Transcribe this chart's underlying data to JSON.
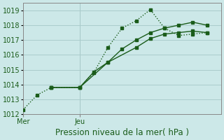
{
  "title": "Pression niveau de la mer( hPa )",
  "background_color": "#cce8e8",
  "grid_color": "#aacccc",
  "line_color": "#1a5c1a",
  "ylim": [
    1012,
    1019.5
  ],
  "yticks": [
    1012,
    1013,
    1014,
    1015,
    1016,
    1017,
    1018,
    1019
  ],
  "xlim": [
    0,
    14
  ],
  "xtick_positions": [
    0,
    4
  ],
  "xtick_labels": [
    "Mer",
    "Jeu"
  ],
  "vline_positions": [
    0,
    4
  ],
  "dotted_x": [
    0,
    1,
    2,
    4,
    5,
    6,
    7,
    8,
    9,
    10,
    11,
    12,
    13
  ],
  "dotted_y": [
    1012.3,
    1013.3,
    1013.8,
    1013.8,
    1014.8,
    1016.5,
    1017.8,
    1018.3,
    1019.05,
    1017.8,
    1017.3,
    1017.4,
    1017.5
  ],
  "solid1_x": [
    2,
    4,
    5,
    6,
    7,
    8,
    9,
    10,
    11,
    12,
    13
  ],
  "solid1_y": [
    1013.8,
    1013.8,
    1014.85,
    1015.5,
    1016.4,
    1017.0,
    1017.5,
    1017.8,
    1018.0,
    1018.2,
    1018.0
  ],
  "solid2_x": [
    2,
    4,
    6,
    8,
    9,
    10,
    11,
    12,
    13
  ],
  "solid2_y": [
    1013.8,
    1013.8,
    1015.5,
    1016.5,
    1017.1,
    1017.4,
    1017.5,
    1017.6,
    1017.5
  ],
  "marker_size": 3,
  "linewidth": 1.0,
  "title_fontsize": 8.5,
  "tick_fontsize": 7
}
